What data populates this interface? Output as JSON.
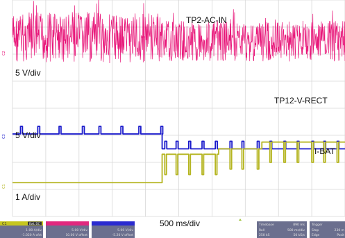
{
  "chart_data": {
    "type": "line",
    "title": "",
    "time_division": "500 ms/div",
    "grid": true,
    "x_range_ms": [
      0,
      5000
    ],
    "traces": [
      {
        "name": "TP2-AC-IN",
        "channel_marker": "C2",
        "scale_label": "5 V/div",
        "color": "#e8187a",
        "shape": "dense-noise",
        "segments": [
          {
            "t_start_ms": 0,
            "t_end_ms": 2250,
            "level_div": 0.0,
            "pp_div": 1.9
          },
          {
            "t_start_ms": 2250,
            "t_end_ms": 5000,
            "level_div": -0.12,
            "pp_div": 1.5
          }
        ]
      },
      {
        "name": "TP12-V-RECT",
        "channel_marker": "C3",
        "scale_label": "5 V/div",
        "color": "#1a1acb",
        "shape": "level-with-pulses",
        "segments": [
          {
            "t_start_ms": 0,
            "t_end_ms": 2250,
            "level_div": 0.0
          },
          {
            "t_start_ms": 2250,
            "t_end_ms": 5000,
            "level_div": -0.55
          }
        ],
        "pulses_ms": [
          120,
          380,
          700,
          1050,
          1300,
          1630,
          1900,
          2230,
          2290,
          2460,
          2650,
          2850,
          3050,
          3270,
          3450,
          3680,
          3870,
          4080,
          4280,
          4500,
          4680,
          4880
        ]
      },
      {
        "name": "I-BAT",
        "channel_marker": "C1",
        "scale_label": "1 A/div",
        "color": "#b5b521",
        "shape": "step-with-dips",
        "segments": [
          {
            "t_start_ms": 0,
            "t_end_ms": 2250,
            "level_div": 0.0
          },
          {
            "t_start_ms": 2250,
            "t_end_ms": 3100,
            "level_div": 1.05
          },
          {
            "t_start_ms": 3100,
            "t_end_ms": 3750,
            "level_div": 1.25
          },
          {
            "t_start_ms": 3750,
            "t_end_ms": 5000,
            "level_div": 1.5
          }
        ],
        "dips_ms": [
          2290,
          2460,
          2650,
          2850,
          3050,
          3270,
          3450,
          3680,
          3870,
          4080,
          4280,
          4500,
          4680,
          4880
        ]
      }
    ]
  },
  "panels": {
    "c1": {
      "name": "C1",
      "mode": "BwL DC",
      "line1": "1.00 A/div",
      "line2": "-1.020 A ofst"
    },
    "c2": {
      "line1": "5.00 V/div",
      "line2": "10.00 V offset"
    },
    "c3": {
      "line1": "5.00 V/div",
      "line2": "-5.20 V offset"
    },
    "timebase": {
      "title": "Timebase",
      "value": "890 ms",
      "roll": "Roll",
      "rate": "500 ms/div",
      "samples": "250 kS",
      "sps": "50 kS/s"
    },
    "trigger": {
      "title": "Trigger",
      "stop": "Stop",
      "edge": "Edge",
      "val1": "230 m",
      "val2": "Posit"
    }
  },
  "colors": {
    "background": "#ffffff",
    "grid": "#d7d7d7",
    "panel_bg": "#6b6f8e",
    "c1_tab": "#c6c61e",
    "c2_tab": "#e0287e",
    "c3_tab": "#2a2ad0",
    "trigger_marker": "#9ec23a"
  }
}
